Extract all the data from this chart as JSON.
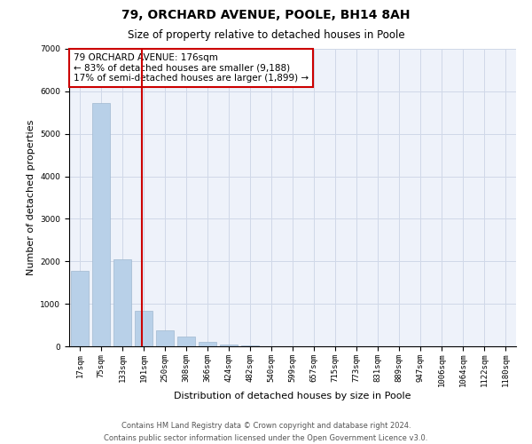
{
  "title": "79, ORCHARD AVENUE, POOLE, BH14 8AH",
  "subtitle": "Size of property relative to detached houses in Poole",
  "xlabel": "Distribution of detached houses by size in Poole",
  "ylabel": "Number of detached properties",
  "categories": [
    "17sqm",
    "75sqm",
    "133sqm",
    "191sqm",
    "250sqm",
    "308sqm",
    "366sqm",
    "424sqm",
    "482sqm",
    "540sqm",
    "599sqm",
    "657sqm",
    "715sqm",
    "773sqm",
    "831sqm",
    "889sqm",
    "947sqm",
    "1006sqm",
    "1064sqm",
    "1122sqm",
    "1180sqm"
  ],
  "values": [
    1780,
    5720,
    2050,
    830,
    370,
    230,
    110,
    50,
    20,
    10,
    5,
    0,
    0,
    0,
    0,
    0,
    0,
    0,
    0,
    0,
    0
  ],
  "bar_color": "#b8d0e8",
  "bar_edge_color": "#a0b8d0",
  "vline_x": 2.9,
  "vline_color": "#cc0000",
  "annotation_box_text": "79 ORCHARD AVENUE: 176sqm\n← 83% of detached houses are smaller (9,188)\n17% of semi-detached houses are larger (1,899) →",
  "annotation_box_color": "#ffffff",
  "annotation_box_edge_color": "#cc0000",
  "ylim": [
    0,
    7000
  ],
  "yticks": [
    0,
    1000,
    2000,
    3000,
    4000,
    5000,
    6000,
    7000
  ],
  "grid_color": "#d0d8e8",
  "bg_color": "#eef2fa",
  "footer_line1": "Contains HM Land Registry data © Crown copyright and database right 2024.",
  "footer_line2": "Contains public sector information licensed under the Open Government Licence v3.0.",
  "title_fontsize": 10,
  "subtitle_fontsize": 8.5,
  "axis_label_fontsize": 8,
  "tick_fontsize": 6.5,
  "annotation_fontsize": 7.5,
  "footer_fontsize": 6
}
